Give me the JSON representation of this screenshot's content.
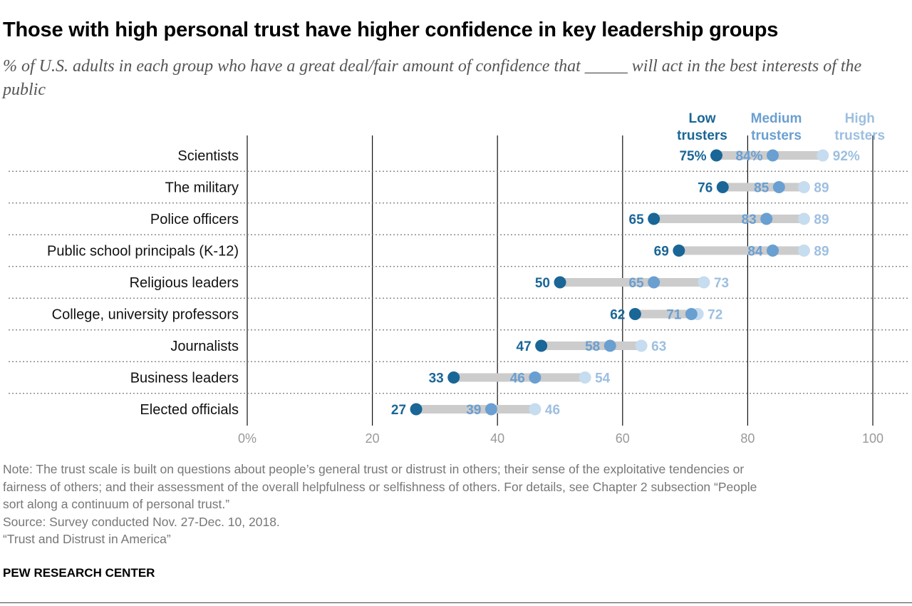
{
  "chart_data": {
    "type": "dot",
    "title": "Those with high personal trust have higher confidence in key leadership groups",
    "subtitle": "% of U.S. adults in each group who have a great deal/fair amount of confidence that _____ will act in the best interests of the public",
    "categories": [
      "Scientists",
      "The military",
      "Police officers",
      "Public school principals (K-12)",
      "Religious leaders",
      "College, university professors",
      "Journalists",
      "Business leaders",
      "Elected officials"
    ],
    "series": [
      {
        "name": "Low trusters",
        "color": "#1a6696",
        "values": [
          75,
          76,
          65,
          69,
          50,
          62,
          47,
          33,
          27
        ]
      },
      {
        "name": "Medium trusters",
        "color": "#6a9fd1",
        "values": [
          84,
          85,
          83,
          84,
          65,
          71,
          58,
          46,
          39
        ]
      },
      {
        "name": "High trusters",
        "color": "#c6dcef",
        "label_color": "#9dbfe0",
        "values": [
          92,
          89,
          89,
          89,
          73,
          72,
          63,
          54,
          46
        ]
      }
    ],
    "first_row_labels": [
      "75%",
      "84%",
      "92%"
    ],
    "xlim": [
      0,
      100
    ],
    "x_ticks": [
      0,
      20,
      40,
      60,
      80,
      100
    ],
    "x_tick_labels": [
      "0%",
      "20",
      "40",
      "60",
      "80",
      "100"
    ],
    "legend_position": "top-right",
    "gridlines": true,
    "connector_color": "#cccccc"
  },
  "legend": [
    {
      "line1": "Low",
      "line2": "trusters"
    },
    {
      "line1": "Medium",
      "line2": "trusters"
    },
    {
      "line1": "High",
      "line2": "trusters"
    }
  ],
  "footer": {
    "note_line1": "Note: The trust scale is built on questions about people’s general trust or distrust in others; their sense of the exploitative tendencies or",
    "note_line2": "fairness of others; and their assessment of the overall helpfulness or selfishness of others. For details, see Chapter 2 subsection “People",
    "note_line3": "sort along a continuum of personal trust.”",
    "source": "Source: Survey conducted Nov. 27-Dec. 10, 2018.",
    "report": "“Trust and Distrust in America”",
    "brand": "PEW RESEARCH CENTER"
  }
}
